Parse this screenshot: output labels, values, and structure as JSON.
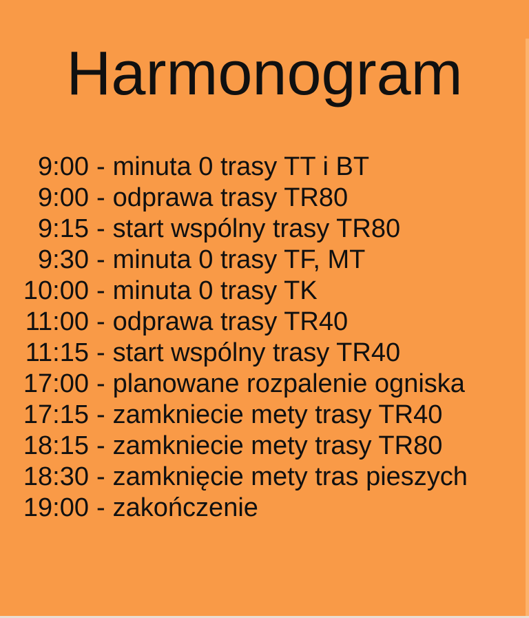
{
  "page": {
    "background_color": "#F99A47",
    "text_color": "#101010"
  },
  "title": "Harmonogram",
  "schedule": {
    "separator": "-",
    "items": [
      {
        "time": "9:00",
        "event": "minuta 0 trasy TT i BT"
      },
      {
        "time": "9:00",
        "event": "odprawa trasy TR80"
      },
      {
        "time": "9:15",
        "event": "start wspólny trasy TR80"
      },
      {
        "time": "9:30",
        "event": "minuta 0 trasy TF, MT"
      },
      {
        "time": "10:00",
        "event": "minuta 0 trasy TK"
      },
      {
        "time": "11:00",
        "event": "odprawa trasy TR40"
      },
      {
        "time": "11:15",
        "event": "start wspólny trasy TR40"
      },
      {
        "time": "17:00",
        "event": "planowane rozpalenie ogniska"
      },
      {
        "time": "17:15",
        "event": "zamkniecie mety trasy TR40"
      },
      {
        "time": "18:15",
        "event": "zamkniecie mety trasy TR80"
      },
      {
        "time": "18:30",
        "event": "zamknięcie mety tras pieszych"
      },
      {
        "time": "19:00",
        "event": "zakończenie"
      }
    ]
  }
}
